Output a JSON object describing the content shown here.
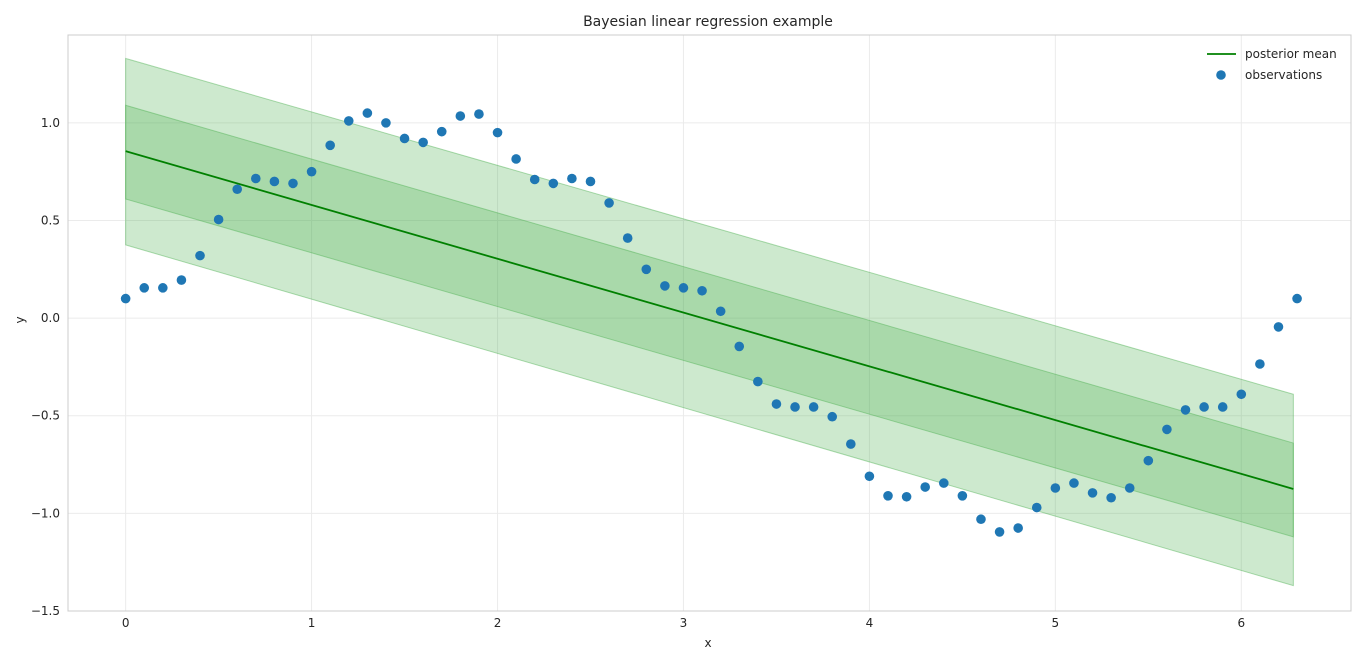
{
  "chart_data": {
    "type": "line",
    "title": "Bayesian linear regression example",
    "xlabel": "x",
    "ylabel": "y",
    "xlim": [
      -0.31,
      6.59
    ],
    "ylim": [
      -1.5,
      1.45
    ],
    "xticks": [
      0,
      1,
      2,
      3,
      4,
      5,
      6
    ],
    "xtick_labels": [
      "0",
      "1",
      "2",
      "3",
      "4",
      "5",
      "6"
    ],
    "yticks": [
      -1.5,
      -1.0,
      -0.5,
      0.0,
      0.5,
      1.0
    ],
    "ytick_labels": [
      "−1.5",
      "−1.0",
      "−0.5",
      "0.0",
      "0.5",
      "1.0"
    ],
    "grid": true,
    "legend_position": "top-right",
    "posterior_mean": {
      "name": "posterior mean",
      "color": "#008000",
      "x": [
        0,
        6.28
      ],
      "y": [
        0.855,
        -0.875
      ]
    },
    "bands": [
      {
        "color": "#4caf50",
        "opacity": 0.28,
        "x": [
          0,
          6.28
        ],
        "upper": [
          1.33,
          -0.39
        ],
        "lower": [
          0.375,
          -1.37
        ]
      },
      {
        "color": "#4caf50",
        "opacity": 0.28,
        "x": [
          0,
          6.28
        ],
        "upper": [
          1.09,
          -0.64
        ],
        "lower": [
          0.61,
          -1.12
        ]
      }
    ],
    "observations": {
      "name": "observations",
      "color": "#1f77b4",
      "x": [
        0.0,
        0.1,
        0.2,
        0.3,
        0.4,
        0.5,
        0.6,
        0.7,
        0.8,
        0.9,
        1.0,
        1.1,
        1.2,
        1.3,
        1.4,
        1.5,
        1.6,
        1.7,
        1.8,
        1.9,
        2.0,
        2.1,
        2.2,
        2.3,
        2.4,
        2.5,
        2.6,
        2.7,
        2.8,
        2.9,
        3.0,
        3.1,
        3.2,
        3.3,
        3.4,
        3.5,
        3.6,
        3.7,
        3.8,
        3.9,
        4.0,
        4.1,
        4.2,
        4.3,
        4.4,
        4.5,
        4.6,
        4.7,
        4.8,
        4.9,
        5.0,
        5.1,
        5.2,
        5.3,
        5.4,
        5.5,
        5.6,
        5.7,
        5.8,
        5.9,
        6.0,
        6.1,
        6.2,
        6.3
      ],
      "y": [
        0.1,
        0.155,
        0.155,
        0.195,
        0.32,
        0.505,
        0.66,
        0.715,
        0.7,
        0.69,
        0.75,
        0.885,
        1.01,
        1.05,
        1.0,
        0.92,
        0.9,
        0.955,
        1.035,
        1.045,
        0.95,
        0.815,
        0.71,
        0.69,
        0.715,
        0.7,
        0.59,
        0.41,
        0.25,
        0.165,
        0.155,
        0.14,
        0.035,
        -0.145,
        -0.325,
        -0.44,
        -0.455,
        -0.455,
        -0.505,
        -0.645,
        -0.81,
        -0.91,
        -0.915,
        -0.865,
        -0.845,
        -0.91,
        -1.03,
        -1.095,
        -1.075,
        -0.97,
        -0.87,
        -0.845,
        -0.895,
        -0.92,
        -0.87,
        -0.73,
        -0.57,
        -0.47,
        -0.455,
        -0.455,
        -0.39,
        -0.235,
        -0.045,
        0.1
      ]
    }
  }
}
